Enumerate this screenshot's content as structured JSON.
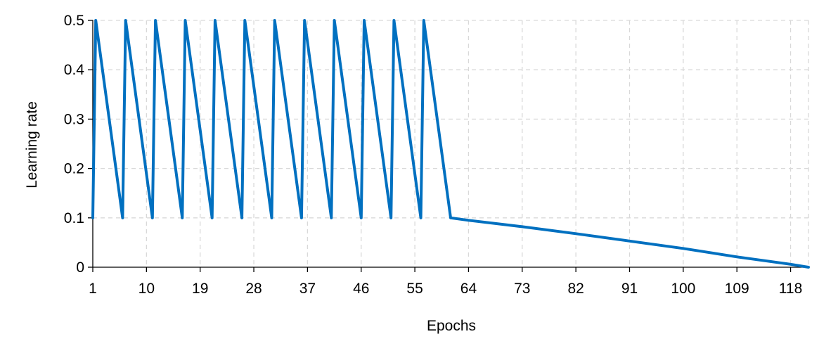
{
  "chart_data": {
    "type": "line",
    "xlabel": "Epochs",
    "ylabel": "Learning rate",
    "xlim": [
      1,
      121
    ],
    "ylim": [
      0,
      0.5
    ],
    "x_ticks": [
      1,
      10,
      19,
      28,
      37,
      46,
      55,
      64,
      73,
      82,
      91,
      100,
      109,
      118
    ],
    "y_ticks": [
      0,
      0.1,
      0.2,
      0.3,
      0.4,
      0.5
    ],
    "y_tick_labels": [
      "0",
      "0.1",
      "0.2",
      "0.3",
      "0.4",
      "0.5"
    ],
    "grid": true,
    "legend": "none",
    "colors": {
      "series": "#0070c0",
      "grid": "#d9d9d9",
      "axis": "#000000"
    },
    "series": [
      {
        "x": [
          1,
          1.5,
          6,
          6.5,
          11,
          11.5,
          16,
          16.5,
          21,
          21.5,
          26,
          26.5,
          31,
          31.5,
          36,
          36.5,
          41,
          41.5,
          46,
          46.5,
          51,
          51.5,
          56,
          56.5,
          61,
          64,
          73,
          82,
          91,
          100,
          109,
          118,
          121
        ],
        "y": [
          0.1,
          0.5,
          0.1,
          0.5,
          0.1,
          0.5,
          0.1,
          0.5,
          0.1,
          0.5,
          0.1,
          0.5,
          0.1,
          0.5,
          0.1,
          0.5,
          0.1,
          0.5,
          0.1,
          0.5,
          0.1,
          0.5,
          0.1,
          0.5,
          0.1,
          0.095,
          0.082,
          0.068,
          0.053,
          0.038,
          0.021,
          0.006,
          0
        ]
      }
    ]
  }
}
